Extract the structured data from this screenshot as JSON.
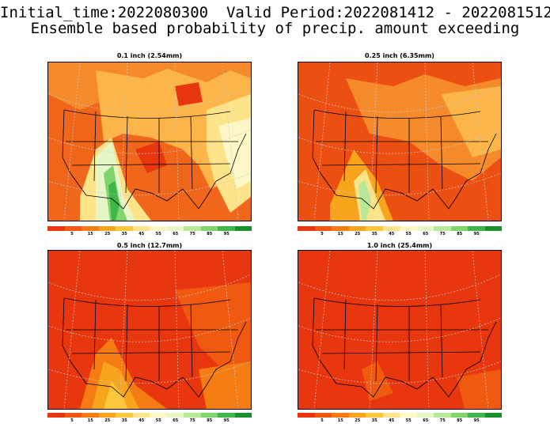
{
  "header": {
    "line1": "Initial_time:2022080300  Valid Period:2022081412 - 2022081512",
    "line2": "Ensemble based probability of precip. amount exceeding"
  },
  "panels": [
    {
      "title": "0.1 inch (2.54mm)"
    },
    {
      "title": "0.25 inch (6.35mm)"
    },
    {
      "title": "0.5 inch (12.7mm)"
    },
    {
      "title": "1.0 inch (25.4mm)"
    }
  ],
  "colorbar": {
    "labels": [
      "5",
      "15",
      "25",
      "35",
      "45",
      "55",
      "65",
      "75",
      "85",
      "95"
    ],
    "colors": [
      "#e8370e",
      "#ef5a10",
      "#f57c12",
      "#f8a41c",
      "#fcc73a",
      "#fde38a",
      "#fdf6c6",
      "#e7f6c7",
      "#b7ea97",
      "#7fd56a",
      "#3fb64a",
      "#18912e"
    ]
  }
}
